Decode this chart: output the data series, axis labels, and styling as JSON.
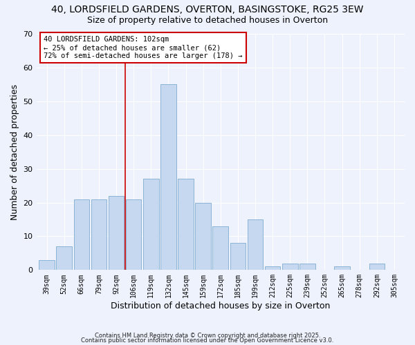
{
  "title": "40, LORDSFIELD GARDENS, OVERTON, BASINGSTOKE, RG25 3EW",
  "subtitle": "Size of property relative to detached houses in Overton",
  "xlabel": "Distribution of detached houses by size in Overton",
  "ylabel": "Number of detached properties",
  "bar_labels": [
    "39sqm",
    "52sqm",
    "66sqm",
    "79sqm",
    "92sqm",
    "106sqm",
    "119sqm",
    "132sqm",
    "145sqm",
    "159sqm",
    "172sqm",
    "185sqm",
    "199sqm",
    "212sqm",
    "225sqm",
    "239sqm",
    "252sqm",
    "265sqm",
    "278sqm",
    "292sqm",
    "305sqm"
  ],
  "bar_values": [
    3,
    7,
    21,
    21,
    22,
    21,
    27,
    55,
    27,
    20,
    13,
    8,
    15,
    1,
    2,
    2,
    0,
    1,
    0,
    2,
    0
  ],
  "bar_color": "#c5d8f0",
  "bar_edge_color": "#8ab4d4",
  "ylim": [
    0,
    70
  ],
  "yticks": [
    0,
    10,
    20,
    30,
    40,
    50,
    60,
    70
  ],
  "vline_color": "#cc0000",
  "annotation_text": "40 LORDSFIELD GARDENS: 102sqm\n← 25% of detached houses are smaller (62)\n72% of semi-detached houses are larger (178) →",
  "annotation_box_color": "#ffffff",
  "annotation_box_edge_color": "#cc0000",
  "background_color": "#eef2fc",
  "footer1": "Contains HM Land Registry data © Crown copyright and database right 2025.",
  "footer2": "Contains public sector information licensed under the Open Government Licence v3.0."
}
